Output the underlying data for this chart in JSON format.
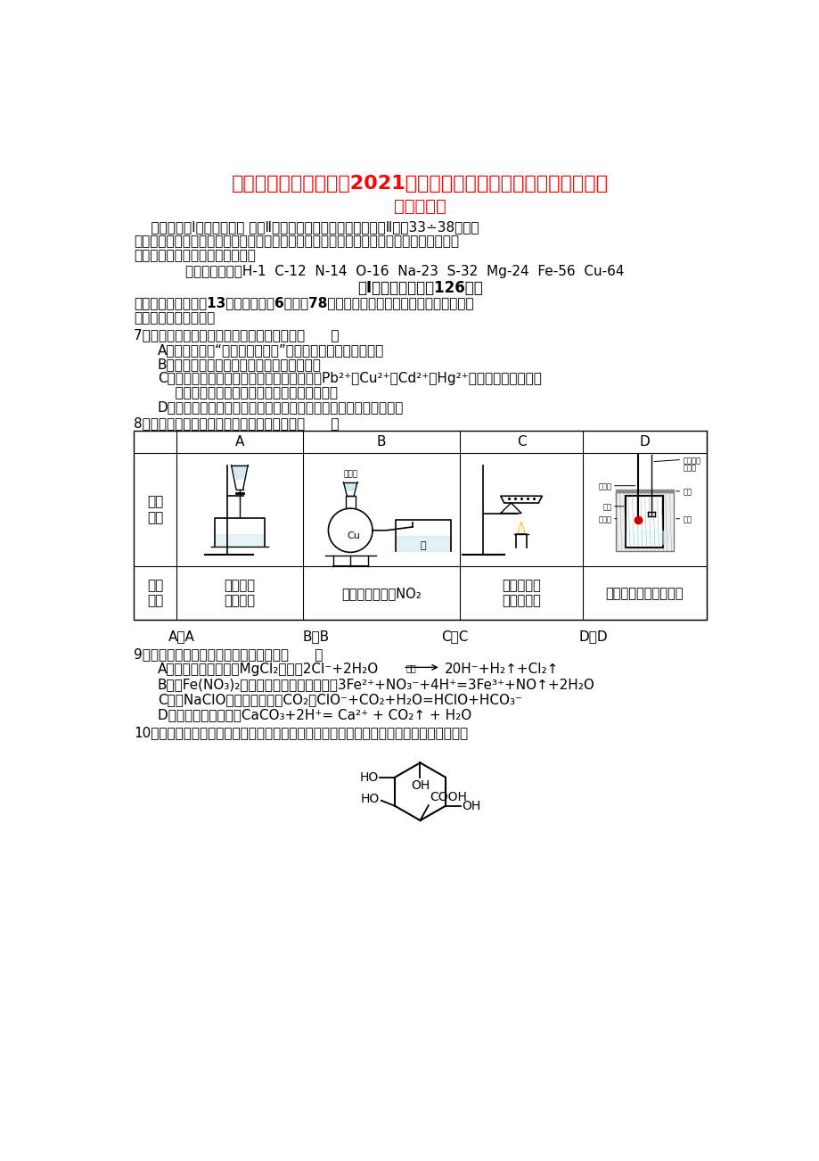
{
  "title_line1": "甘肃省静宁县第一中学2021届高三化学上学期第三次模拟考试试题",
  "title_line2": "（实验班）",
  "title_color": "#FF0000",
  "bg_color": "#FFFFFF",
  "text_color": "#000000",
  "atomic_mass": "相对原子质量：H-1  C-12  N-14  O-16  Na-23  S-32  Mg-24  Fe-56  Cu-64",
  "section_header": "第Ⅰ卷（选择题，共126分）",
  "q7_title": "7．化学与生活密切相关。下列说法错误的是（      ）",
  "q7_A": "A．汉代烧制出“明如镜、声如磬”的瓷器，其主要原料为黏土",
  "q7_B": "B．疫苗一般应冷藏存放，以避免蛋白质变性",
  "q7_D": "D．电热水器用镁棒防止内胆腐蚀，原理是牺牲性阳极的阴极保护法",
  "q8_title": "8．用下列实验装置能达到相关实验目的的是（      ）",
  "q9_title": "9．下列指定反应的离子方程式正确的是（      ）",
  "q10_title": "10．奎尼酸是制备治疗艾滋病新药二咖啡酰奎尼酸的原料，其结构简式如图，下列有关奎尼"
}
